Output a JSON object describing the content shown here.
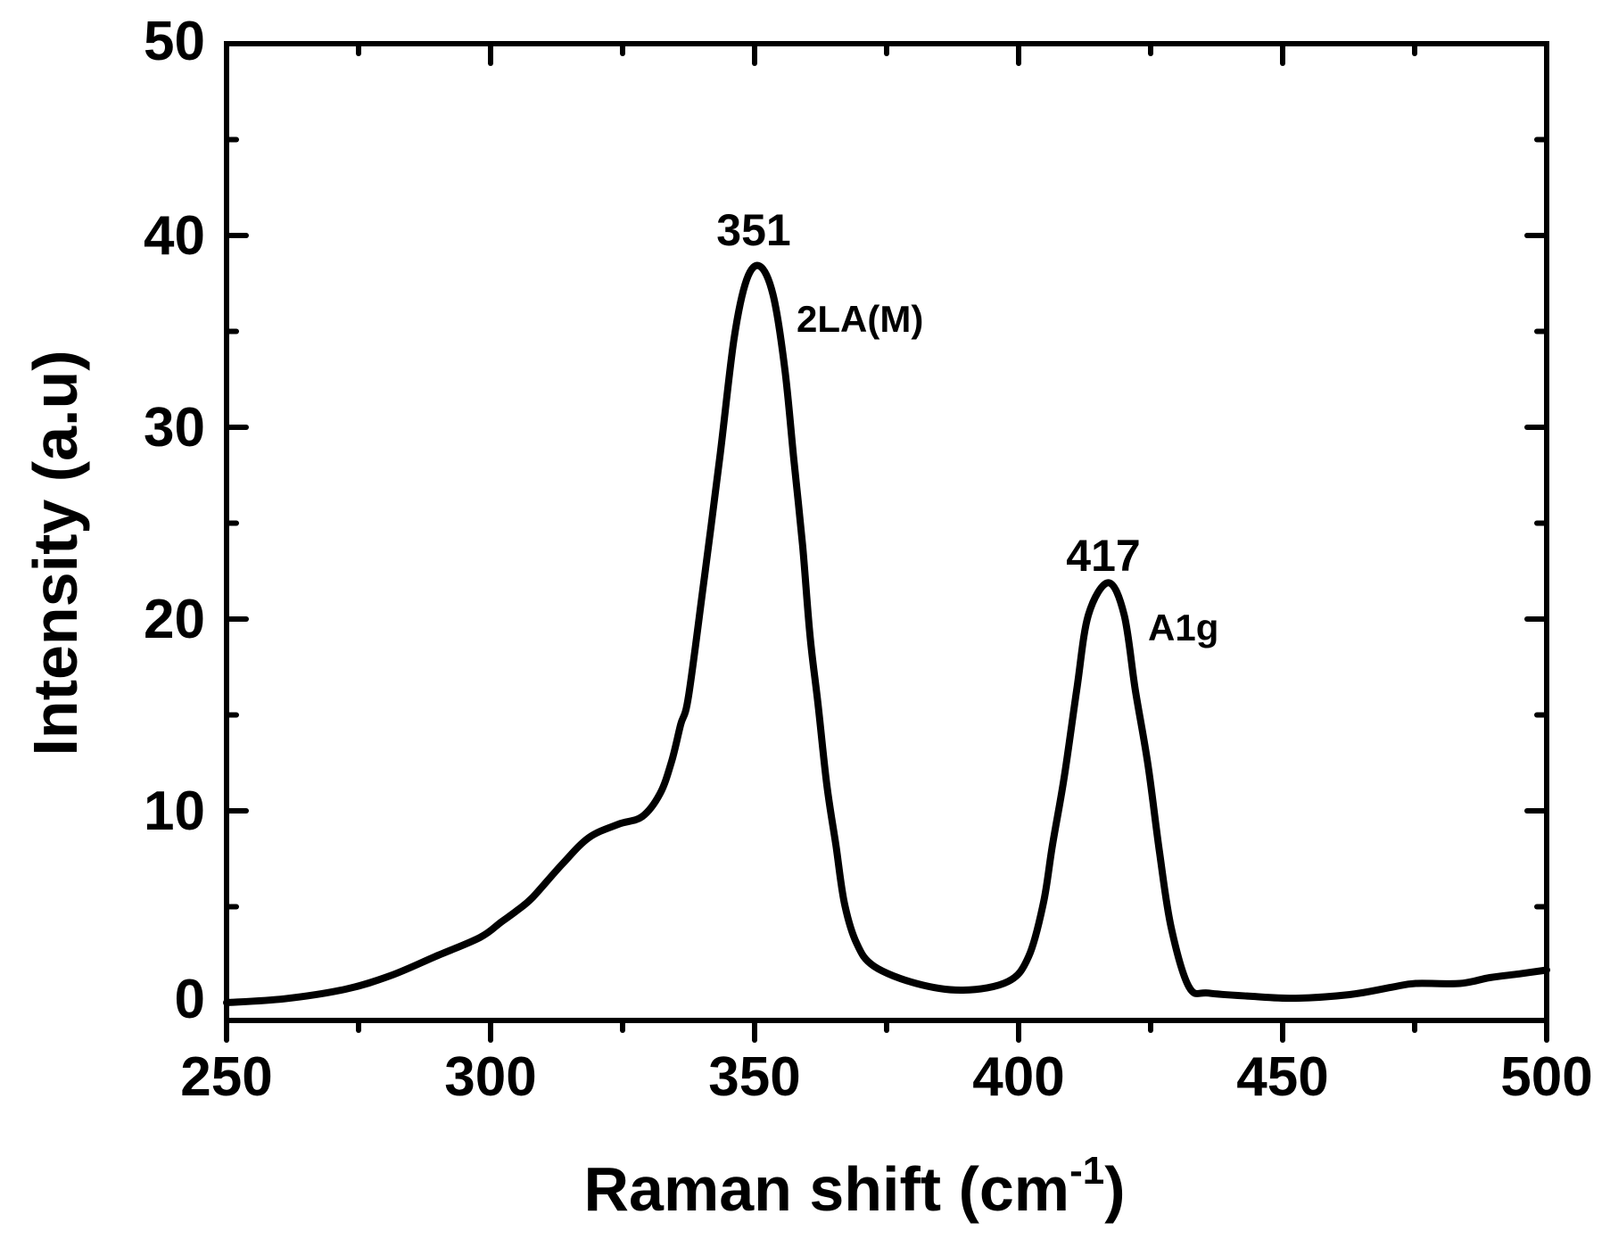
{
  "chart_data": {
    "type": "line",
    "title": "",
    "xlabel": "Raman shift (cm-1)",
    "xlabel_main": "Raman shift (cm",
    "xlabel_sup": "-1",
    "xlabel_close": ")",
    "ylabel": "Intensity (a.u)",
    "xlim": [
      250,
      500
    ],
    "ylim": [
      -0.9,
      50
    ],
    "grid": false,
    "legend": null,
    "x_ticks": [
      250,
      300,
      350,
      400,
      450,
      500
    ],
    "x_tick_labels": [
      "250",
      "300",
      "350",
      "400",
      "450",
      "500"
    ],
    "x_minor_ticks": [
      275,
      325,
      375,
      425,
      475
    ],
    "y_ticks": [
      0,
      10,
      20,
      30,
      40,
      50
    ],
    "y_tick_labels": [
      "0",
      "10",
      "20",
      "30",
      "40",
      "50"
    ],
    "y_minor_ticks": [
      5,
      15,
      25,
      35,
      45
    ],
    "series": [
      {
        "name": "Raman spectrum",
        "color": "#000000",
        "x": [
          250,
          261,
          272.5,
          281,
          289.5,
          298,
          302,
          305,
          308,
          313.5,
          318.6,
          324.2,
          328.7,
          332.1,
          334.3,
          336,
          337.5,
          340.5,
          343.4,
          346.1,
          348.5,
          351,
          353.5,
          355.7,
          357.4,
          359.1,
          360.5,
          362,
          363.7,
          365.4,
          367,
          369.3,
          372.6,
          380.6,
          389.5,
          398,
          401.9,
          404.7,
          406.4,
          408.6,
          411,
          413.2,
          417,
          420,
          422.1,
          424.5,
          426.7,
          428.9,
          432.3,
          436,
          444,
          452.5,
          462.7,
          470.6,
          475.2,
          483.6,
          489.2,
          494.8,
          500
        ],
        "y": [
          0.0,
          0.2,
          0.7,
          1.4,
          2.4,
          3.4,
          4.2,
          4.8,
          5.5,
          7.2,
          8.6,
          9.3,
          9.7,
          10.9,
          12.6,
          14.5,
          16.0,
          22.2,
          28.4,
          34.6,
          37.7,
          38.4,
          36.9,
          33.1,
          28.4,
          23.8,
          19.1,
          15.6,
          11.3,
          8.2,
          5.2,
          3.1,
          1.9,
          1.0,
          0.65,
          1.1,
          2.4,
          5.2,
          8.2,
          11.7,
          16.3,
          20.2,
          21.9,
          20.2,
          16.3,
          12.4,
          7.8,
          3.9,
          0.8,
          0.5,
          0.33,
          0.23,
          0.42,
          0.8,
          1.0,
          1.0,
          1.3,
          1.5,
          1.7
        ]
      }
    ],
    "annotations": [
      {
        "text": "351",
        "x": 351,
        "y": 38.4,
        "role": "peak-position"
      },
      {
        "text": "2LA(M)",
        "x": 351,
        "y": 38.4,
        "role": "mode-label"
      },
      {
        "text": "417",
        "x": 417,
        "y": 21.9,
        "role": "peak-position"
      },
      {
        "text": "A1g",
        "x": 417,
        "y": 21.9,
        "role": "mode-label"
      }
    ]
  },
  "labels": {
    "peak1_pos": "351",
    "peak1_mode": "2LA(M)",
    "peak2_pos": "417",
    "peak2_mode": "A1g",
    "xlabel_main": "Raman shift (cm",
    "xlabel_sup": "-1",
    "xlabel_close": ")",
    "ylabel": "Intensity (a.u)",
    "xticks": [
      "250",
      "300",
      "350",
      "400",
      "450",
      "500"
    ],
    "yticks": [
      "0",
      "10",
      "20",
      "30",
      "40",
      "50"
    ]
  }
}
